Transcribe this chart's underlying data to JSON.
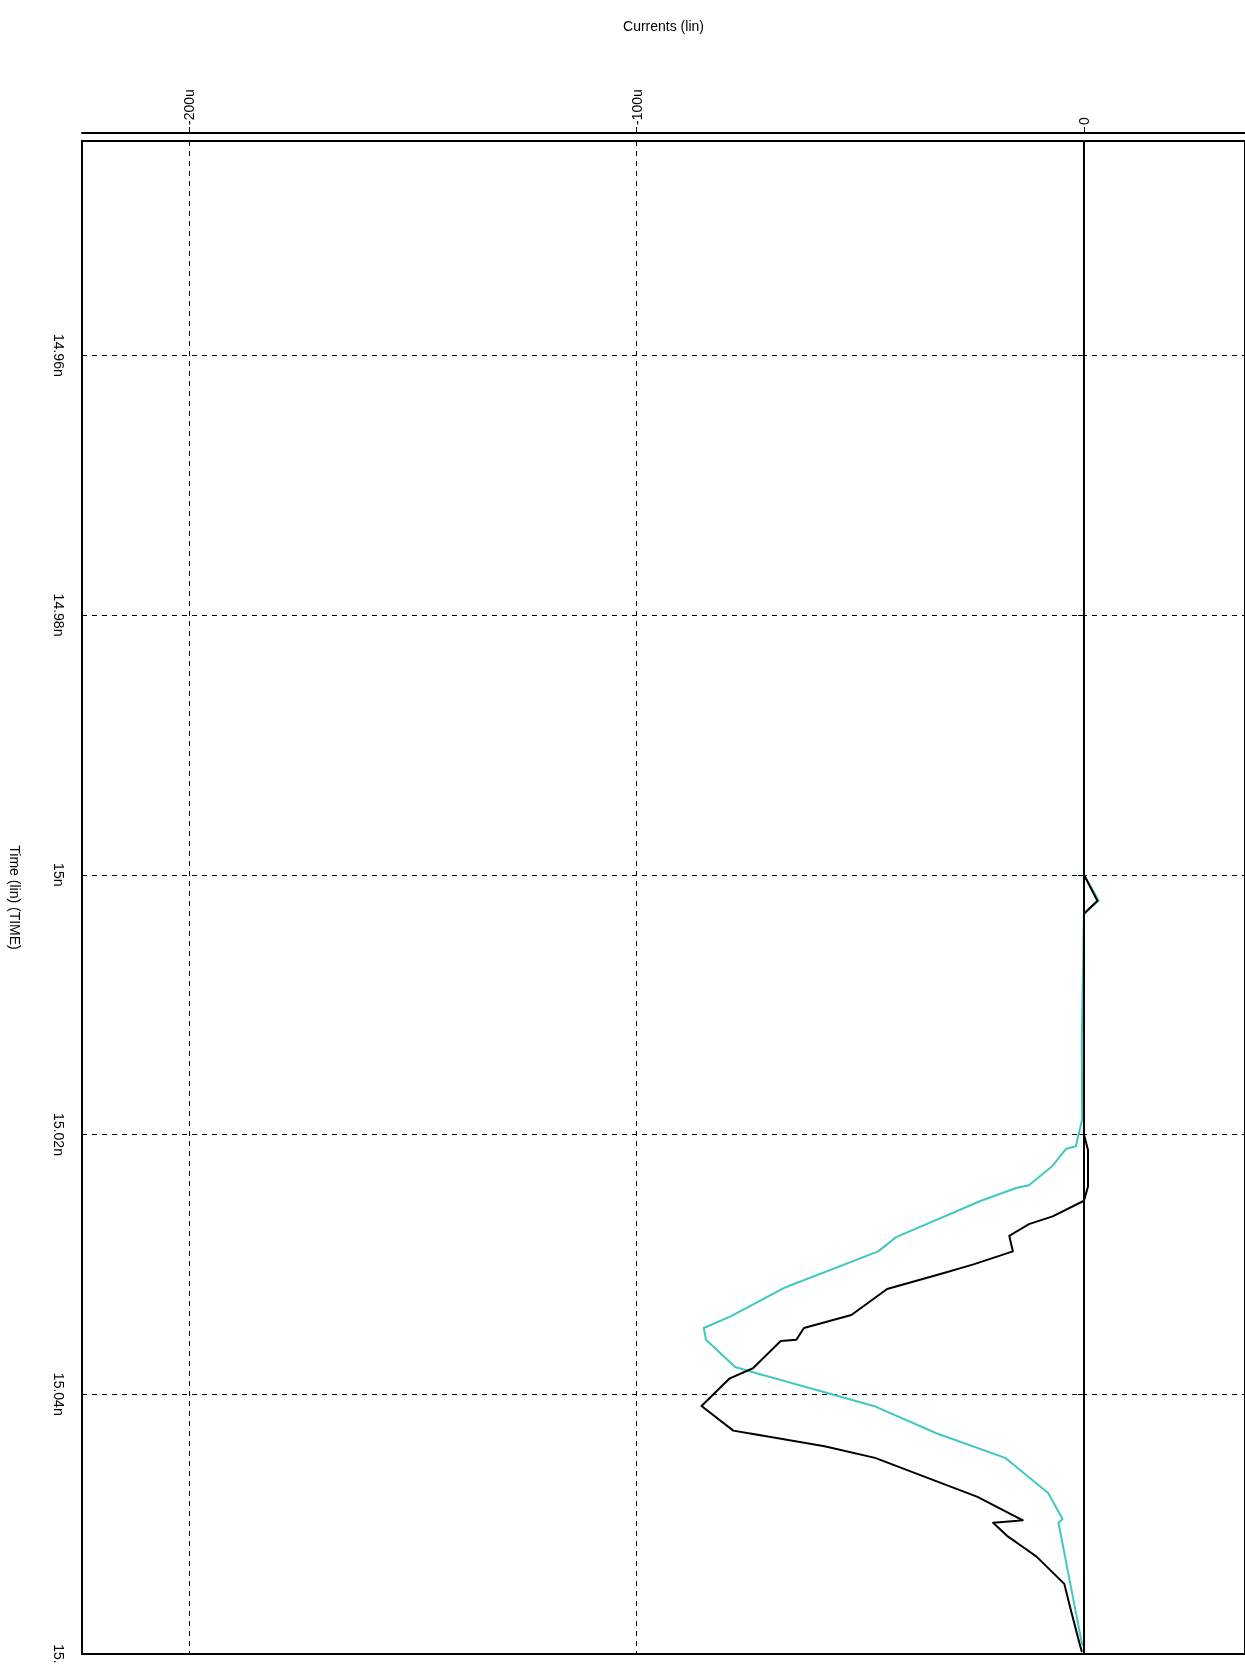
{
  "chart_data": {
    "type": "line",
    "xlabel": "Currents (lin)",
    "ylabel": "Time (lin) (TIME)",
    "xlim": [
      -224,
      36
    ],
    "xticks": [
      {
        "value": -200,
        "label": "-200u"
      },
      {
        "value": -100,
        "label": "-100u"
      },
      0
    ],
    "ylim": [
      15.06,
      14.9435
    ],
    "yticks": [
      {
        "value": 14.96,
        "label": "14.96n"
      },
      {
        "value": 14.98,
        "label": "14.98n"
      },
      {
        "value": 15,
        "label": "15n"
      },
      {
        "value": 15.02,
        "label": "15.02n"
      },
      {
        "value": 15.04,
        "label": "15.04n"
      },
      {
        "value": 15.06,
        "label": "15."
      }
    ],
    "grid": true,
    "marker": "none",
    "line_style": "solid",
    "series": [
      {
        "color": "#40c8c0",
        "x": [
          0,
          0,
          3.3,
          0,
          -0.5,
          -0.4,
          -1.8,
          -4,
          -7,
          -12.3,
          -15,
          -23,
          -42,
          -46,
          -67,
          -79,
          -85,
          -84.5,
          -78,
          -72,
          -47,
          -33,
          -17.6,
          -8,
          -4.8,
          -5.7,
          -0.4
        ],
        "values": [
          14.9435,
          15.0,
          15.002,
          15.003,
          15.013,
          15.0188,
          15.0209,
          15.0211,
          15.0224,
          15.0239,
          15.0241,
          15.0251,
          15.0279,
          15.029,
          15.0318,
          15.034,
          15.0349,
          15.0358,
          15.0379,
          15.0385,
          15.0409,
          15.043,
          15.0449,
          15.0476,
          15.0496,
          15.0499,
          15.0593
        ]
      },
      {
        "color": "#000000",
        "x": [
          0,
          0,
          3,
          0,
          0,
          0.9,
          0.9,
          0,
          -7,
          -12.3,
          -16.7,
          -15.9,
          -24.7,
          -31.7,
          -44,
          -52,
          -62.6,
          -64.3,
          -67.8,
          -74,
          -79.3,
          -85.5,
          -78.4,
          -58,
          -46.7,
          -23.8,
          -13.7,
          -20.3,
          -17.2,
          -10.6,
          -4.4,
          -3.1,
          -0.9,
          -0.5
        ],
        "values": [
          14.9435,
          15.0,
          15.002,
          15.003,
          15.02,
          15.0212,
          15.024,
          15.0251,
          15.0263,
          15.0269,
          15.0278,
          15.029,
          15.03,
          15.0307,
          15.0319,
          15.0339,
          15.0349,
          15.0358,
          15.0359,
          15.038,
          15.0388,
          15.0409,
          15.0428,
          15.044,
          15.0449,
          15.0479,
          15.0497,
          15.0499,
          15.0509,
          15.0525,
          15.0546,
          15.0564,
          15.0593,
          15.0598
        ]
      }
    ]
  }
}
